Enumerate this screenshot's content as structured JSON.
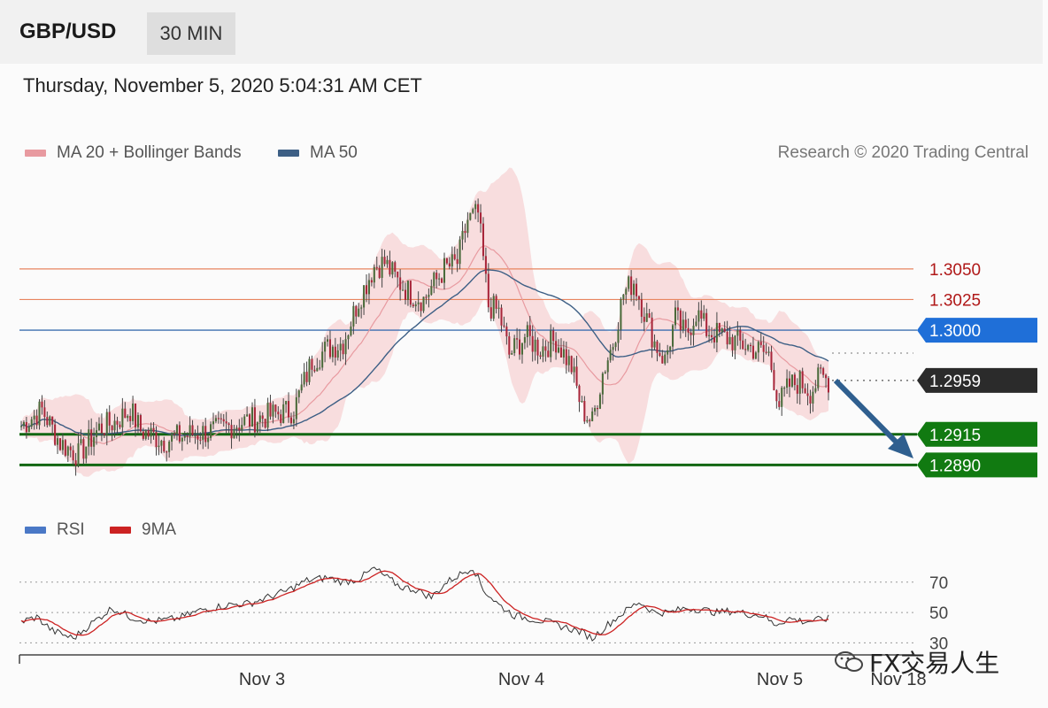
{
  "header": {
    "symbol": "GBP/USD",
    "interval": "30 MIN"
  },
  "timestamp": "Thursday, November 5, 2020 5:04:31 AM CET",
  "legend": {
    "ma20": {
      "label": "MA 20 + Bollinger Bands",
      "color": "#e89aa0"
    },
    "ma50": {
      "label": "MA 50",
      "color": "#3d5f85"
    }
  },
  "copyright": "Research © 2020 Trading Central",
  "rsi_legend": {
    "rsi": {
      "label": "RSI",
      "color": "#4a78c6"
    },
    "ma9": {
      "label": "9MA",
      "color": "#cc2222"
    }
  },
  "watermark": "FX交易人生",
  "chart_data": [
    {
      "type": "candlestick",
      "x_ticks": [
        "Nov 3",
        "Nov 4",
        "Nov 5",
        "Nov 18"
      ],
      "ylim": [
        1.2865,
        1.3125
      ],
      "levels": [
        {
          "label": "1.3050",
          "value": 1.305,
          "kind": "resistance",
          "color": "#e8855f",
          "text_color": "#b01818"
        },
        {
          "label": "1.3025",
          "value": 1.3025,
          "kind": "resistance",
          "color": "#e8855f",
          "text_color": "#b01818"
        },
        {
          "label": "1.3000",
          "value": 1.3,
          "kind": "pivot",
          "color": "#3d6fb0",
          "box_color": "#1f6fd8"
        },
        {
          "label": "1.2959",
          "value": 1.2959,
          "kind": "last",
          "color": "#555555",
          "box_color": "#2b2b2b"
        },
        {
          "label": "1.2915",
          "value": 1.2915,
          "kind": "support",
          "color": "#116611",
          "box_color": "#117a11"
        },
        {
          "label": "1.2890",
          "value": 1.289,
          "kind": "support",
          "color": "#116611",
          "box_color": "#117a11"
        }
      ],
      "close_anchors": [
        [
          0,
          1.2922
        ],
        [
          8,
          1.2935
        ],
        [
          15,
          1.2908
        ],
        [
          22,
          1.2898
        ],
        [
          30,
          1.292
        ],
        [
          36,
          1.2925
        ],
        [
          42,
          1.2935
        ],
        [
          46,
          1.2918
        ],
        [
          55,
          1.291
        ],
        [
          65,
          1.2915
        ],
        [
          75,
          1.2918
        ],
        [
          85,
          1.2925
        ],
        [
          95,
          1.293
        ],
        [
          105,
          1.2935
        ],
        [
          112,
          1.2975
        ],
        [
          118,
          1.2985
        ],
        [
          124,
          1.299
        ],
        [
          130,
          1.3025
        ],
        [
          136,
          1.3052
        ],
        [
          140,
          1.3055
        ],
        [
          145,
          1.304
        ],
        [
          150,
          1.303
        ],
        [
          155,
          1.3025
        ],
        [
          158,
          1.3035
        ],
        [
          163,
          1.305
        ],
        [
          168,
          1.3055
        ],
        [
          172,
          1.309
        ],
        [
          176,
          1.3095
        ],
        [
          180,
          1.302
        ],
        [
          184,
          1.3015
        ],
        [
          188,
          1.298
        ],
        [
          194,
          1.2995
        ],
        [
          200,
          1.2985
        ],
        [
          206,
          1.2992
        ],
        [
          212,
          1.297
        ],
        [
          216,
          1.2935
        ],
        [
          220,
          1.2925
        ],
        [
          224,
          1.2965
        ],
        [
          228,
          1.299
        ],
        [
          232,
          1.303
        ],
        [
          236,
          1.304
        ],
        [
          240,
          1.3015
        ],
        [
          244,
          1.299
        ],
        [
          248,
          1.2975
        ],
        [
          252,
          1.301
        ],
        [
          256,
          1.2995
        ],
        [
          260,
          1.3015
        ],
        [
          264,
          1.3
        ],
        [
          270,
          1.2995
        ],
        [
          276,
          1.299
        ],
        [
          282,
          1.2985
        ],
        [
          288,
          1.298
        ],
        [
          292,
          1.294
        ],
        [
          296,
          1.2955
        ],
        [
          300,
          1.2958
        ],
        [
          304,
          1.295
        ],
        [
          308,
          1.2962
        ],
        [
          311,
          1.2959
        ]
      ],
      "rsi": {
        "ylim": [
          25,
          85
        ],
        "levels": [
          30,
          50,
          70
        ],
        "anchors": [
          [
            0,
            44
          ],
          [
            6,
            47
          ],
          [
            12,
            38
          ],
          [
            20,
            33
          ],
          [
            28,
            44
          ],
          [
            35,
            53
          ],
          [
            42,
            47
          ],
          [
            50,
            44
          ],
          [
            60,
            46
          ],
          [
            70,
            52
          ],
          [
            80,
            55
          ],
          [
            88,
            56
          ],
          [
            95,
            60
          ],
          [
            102,
            64
          ],
          [
            110,
            71
          ],
          [
            118,
            73
          ],
          [
            124,
            70
          ],
          [
            130,
            72
          ],
          [
            136,
            79
          ],
          [
            140,
            74
          ],
          [
            146,
            67
          ],
          [
            152,
            65
          ],
          [
            158,
            60
          ],
          [
            164,
            70
          ],
          [
            170,
            76
          ],
          [
            174,
            80
          ],
          [
            178,
            65
          ],
          [
            184,
            55
          ],
          [
            190,
            48
          ],
          [
            196,
            46
          ],
          [
            202,
            44
          ],
          [
            210,
            40
          ],
          [
            216,
            37
          ],
          [
            220,
            33
          ],
          [
            226,
            42
          ],
          [
            232,
            50
          ],
          [
            238,
            57
          ],
          [
            244,
            50
          ],
          [
            250,
            50
          ],
          [
            256,
            53
          ],
          [
            262,
            52
          ],
          [
            268,
            50
          ],
          [
            274,
            51
          ],
          [
            280,
            49
          ],
          [
            286,
            48
          ],
          [
            290,
            42
          ],
          [
            296,
            46
          ],
          [
            302,
            44
          ],
          [
            311,
            46
          ]
        ]
      }
    }
  ]
}
